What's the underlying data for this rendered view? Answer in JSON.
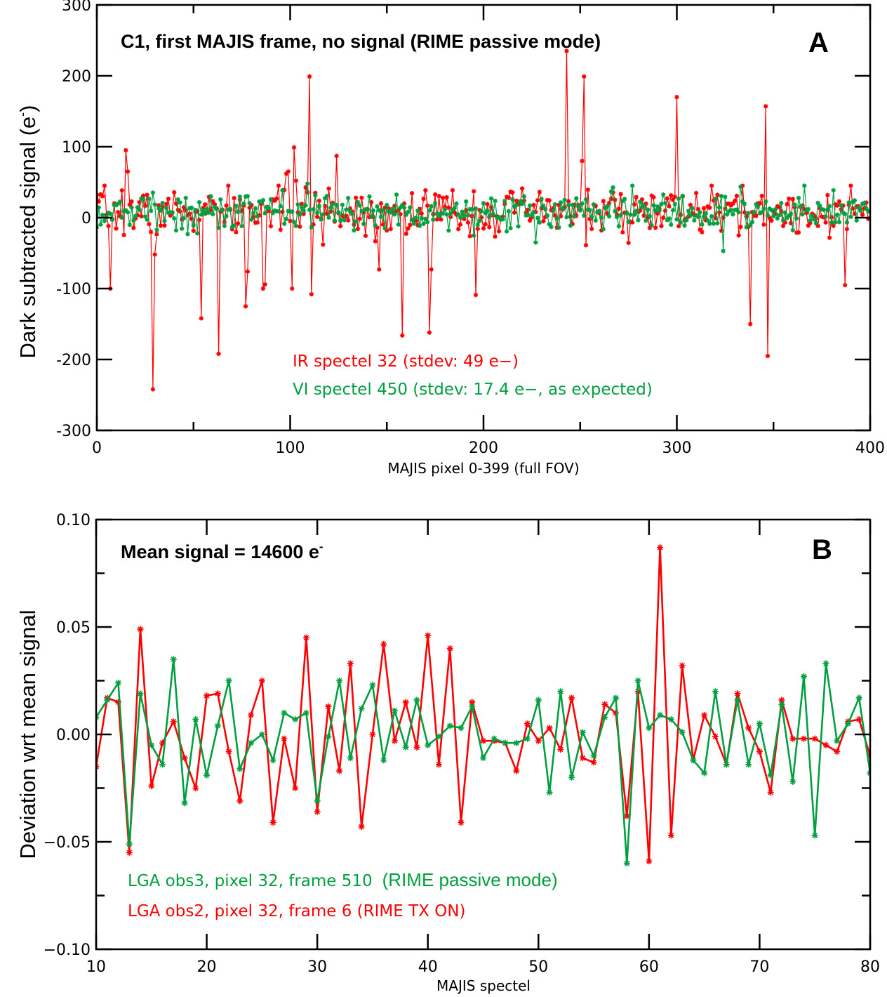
{
  "colors": {
    "ir": "#ff0000",
    "vi": "#00a040",
    "axis": "#000000"
  },
  "chart_data": [
    {
      "id": "A",
      "type": "line",
      "panel_letter": "A",
      "annotation": "C1, first MAJIS frame, no signal (RIME passive mode)",
      "xlabel": "MAJIS pixel 0-399 (full FOV)",
      "ylabel": "Dark subtracted signal (e",
      "ylabel_superscript": "-",
      "ylabel_close": ")",
      "xlim": [
        0,
        400
      ],
      "ylim": [
        -300,
        300
      ],
      "xticks": [
        0,
        100,
        200,
        300,
        400
      ],
      "xtick_labels": [
        "0",
        "100",
        "200",
        "300",
        "400"
      ],
      "yticks": [
        -300,
        -200,
        -100,
        0,
        100,
        200,
        300
      ],
      "ytick_labels": [
        "-300",
        "-200",
        "-100",
        "0",
        "100",
        "200",
        "300"
      ],
      "grid": false,
      "legend_position": "bottom-center",
      "series": [
        {
          "name": "IR spectel 32 (stdev: 49 e−)",
          "color_key": "ir",
          "noise_stdev": 22,
          "seed": 7,
          "spikes": [
            [
              7,
              -100
            ],
            [
              15,
              95
            ],
            [
              16,
              65
            ],
            [
              29,
              -242
            ],
            [
              30,
              -52
            ],
            [
              54,
              -142
            ],
            [
              63,
              -192
            ],
            [
              77,
              -125
            ],
            [
              78,
              -76
            ],
            [
              86,
              -100
            ],
            [
              87,
              -94
            ],
            [
              101,
              -100
            ],
            [
              102,
              99
            ],
            [
              103,
              52
            ],
            [
              110,
              199
            ],
            [
              111,
              -108
            ],
            [
              124,
              87
            ],
            [
              158,
              -166
            ],
            [
              172,
              -162
            ],
            [
              173,
              -73
            ],
            [
              196,
              -109
            ],
            [
              243,
              235
            ],
            [
              252,
              199
            ],
            [
              251,
              80
            ],
            [
              300,
              170
            ],
            [
              338,
              -150
            ],
            [
              347,
              -195
            ],
            [
              346,
              157
            ],
            [
              387,
              -95
            ],
            [
              120,
              41
            ],
            [
              99,
              65
            ],
            [
              98,
              62
            ],
            [
              146,
              -73
            ]
          ]
        },
        {
          "name": "VI spectel 450 (stdev: 17.4 e−, as expected)",
          "color_key": "vi",
          "noise_stdev": 17.4,
          "seed": 13,
          "spikes": [
            [
              109,
              48
            ],
            [
              324,
              -47
            ],
            [
              227,
              -35
            ],
            [
              366,
              45
            ]
          ]
        }
      ],
      "legend": [
        {
          "text": "IR spectel 32 (stdev: 49 e−)",
          "color_key": "ir"
        },
        {
          "text": "VI spectel 450 (stdev: 17.4 e−, as expected)",
          "color_key": "vi"
        }
      ]
    },
    {
      "id": "B",
      "type": "line",
      "panel_letter": "B",
      "annotation": "Mean signal = 14600 e",
      "annotation_superscript": "-",
      "xlabel": "MAJIS spectel",
      "ylabel": "Deviation wrt mean signal",
      "xlim": [
        10,
        80
      ],
      "ylim": [
        -0.1,
        0.1
      ],
      "xticks": [
        10,
        20,
        30,
        40,
        50,
        60,
        70,
        80
      ],
      "xtick_labels": [
        "10",
        "20",
        "30",
        "40",
        "50",
        "60",
        "70",
        "80"
      ],
      "yticks": [
        -0.1,
        -0.05,
        0.0,
        0.05,
        0.1
      ],
      "ytick_labels": [
        "−0.10",
        "−0.05",
        "0.00",
        "0.05",
        "0.10"
      ],
      "grid": false,
      "legend_position": "bottom-left",
      "x": [
        10,
        11,
        12,
        13,
        14,
        15,
        16,
        17,
        18,
        19,
        20,
        21,
        22,
        23,
        24,
        25,
        26,
        27,
        28,
        29,
        30,
        31,
        32,
        33,
        34,
        35,
        36,
        37,
        38,
        39,
        40,
        41,
        42,
        43,
        44,
        45,
        46,
        47,
        48,
        49,
        50,
        51,
        52,
        53,
        54,
        55,
        56,
        57,
        58,
        59,
        60,
        61,
        62,
        63,
        64,
        65,
        66,
        67,
        68,
        69,
        70,
        71,
        72,
        73,
        74,
        75,
        76,
        77,
        78,
        79,
        80
      ],
      "series": [
        {
          "name": "LGA obs3, pixel 32, frame 510 (RIME passive mode)",
          "color_key": "vi",
          "values": [
            0.008,
            0.016,
            0.024,
            -0.051,
            0.019,
            -0.005,
            -0.014,
            0.035,
            -0.032,
            0.007,
            -0.019,
            0.004,
            0.025,
            -0.016,
            -0.004,
            0.0,
            -0.012,
            0.01,
            0.007,
            0.01,
            -0.031,
            -0.001,
            0.025,
            -0.011,
            0.012,
            0.023,
            -0.012,
            0.011,
            -0.006,
            0.016,
            -0.005,
            -0.001,
            0.004,
            0.003,
            0.013,
            -0.011,
            -0.002,
            -0.004,
            -0.004,
            -0.002,
            0.016,
            -0.027,
            0.02,
            -0.02,
            0.001,
            -0.01,
            0.008,
            0.017,
            -0.06,
            0.025,
            0.003,
            0.009,
            0.007,
            0.001,
            -0.012,
            -0.018,
            0.02,
            -0.014,
            0.016,
            -0.014,
            0.005,
            -0.019,
            0.014,
            -0.022,
            0.027,
            -0.047,
            0.033,
            -0.003,
            0.005,
            0.017,
            -0.018
          ]
        },
        {
          "name": "LGA obs2, pixel 32, frame 6 (RIME TX ON)",
          "color_key": "ir",
          "values": [
            -0.015,
            0.017,
            0.015,
            -0.055,
            0.049,
            -0.024,
            -0.004,
            0.006,
            -0.011,
            -0.025,
            0.018,
            0.019,
            -0.008,
            -0.031,
            0.009,
            0.025,
            -0.041,
            -0.002,
            -0.025,
            0.045,
            -0.036,
            0.013,
            -0.017,
            0.033,
            -0.043,
            0.0,
            0.042,
            -0.003,
            0.015,
            -0.006,
            0.046,
            -0.014,
            0.04,
            -0.041,
            0.015,
            -0.003,
            -0.003,
            -0.004,
            -0.017,
            0.005,
            -0.003,
            0.003,
            -0.007,
            0.017,
            -0.011,
            -0.013,
            0.014,
            0.01,
            -0.038,
            0.02,
            -0.059,
            0.087,
            -0.047,
            0.032,
            -0.012,
            0.009,
            -0.001,
            -0.014,
            0.019,
            0.003,
            -0.008,
            -0.027,
            0.016,
            -0.002,
            -0.002,
            -0.002,
            -0.005,
            -0.008,
            0.006,
            0.007,
            -0.01
          ]
        }
      ],
      "legend": [
        {
          "text": "LGA obs3, pixel 32, frame 510",
          "extra": "(RIME passive mode)",
          "color_key": "vi"
        },
        {
          "text": "LGA obs2, pixel 32, frame 6 (RIME TX ON)",
          "color_key": "ir"
        }
      ]
    }
  ]
}
